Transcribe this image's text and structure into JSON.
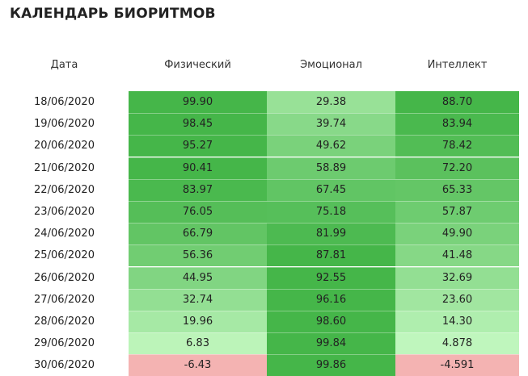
{
  "title": "КАЛЕНДАРЬ БИОРИТМОВ",
  "headers": {
    "date": "Дата",
    "physical": "Физический",
    "emotional": "Эмоционал",
    "intellectual": "Интеллект"
  },
  "rows": [
    {
      "date": "18/06/2020",
      "physical": "99.90",
      "emotional": "29.38",
      "intellectual": "88.70"
    },
    {
      "date": "19/06/2020",
      "physical": "98.45",
      "emotional": "39.74",
      "intellectual": "83.94"
    },
    {
      "date": "20/06/2020",
      "physical": "95.27",
      "emotional": "49.62",
      "intellectual": "78.42"
    },
    {
      "date": "21/06/2020",
      "physical": "90.41",
      "emotional": "58.89",
      "intellectual": "72.20"
    },
    {
      "date": "22/06/2020",
      "physical": "83.97",
      "emotional": "67.45",
      "intellectual": "65.33"
    },
    {
      "date": "23/06/2020",
      "physical": "76.05",
      "emotional": "75.18",
      "intellectual": "57.87"
    },
    {
      "date": "24/06/2020",
      "physical": "66.79",
      "emotional": "81.99",
      "intellectual": "49.90"
    },
    {
      "date": "25/06/2020",
      "physical": "56.36",
      "emotional": "87.81",
      "intellectual": "41.48"
    },
    {
      "date": "26/06/2020",
      "physical": "44.95",
      "emotional": "92.55",
      "intellectual": "32.69"
    },
    {
      "date": "27/06/2020",
      "physical": "32.74",
      "emotional": "96.16",
      "intellectual": "23.60"
    },
    {
      "date": "28/06/2020",
      "physical": "19.96",
      "emotional": "98.60",
      "intellectual": "14.30"
    },
    {
      "date": "29/06/2020",
      "physical": "6.83",
      "emotional": "99.84",
      "intellectual": "4.878"
    },
    {
      "date": "30/06/2020",
      "physical": "-6.43",
      "emotional": "99.86",
      "intellectual": "-4.591"
    }
  ],
  "colors": {
    "positive_strong": "#45b649",
    "positive_light": "#c9fbc6",
    "negative": "#f4b3b2"
  }
}
